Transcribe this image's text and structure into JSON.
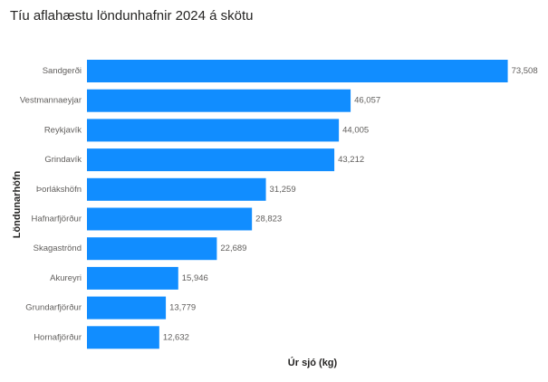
{
  "chart_data": {
    "type": "bar",
    "orientation": "horizontal",
    "title": "Tíu aflahæstu löndunhafnir 2024 á skötu",
    "xlabel": "Úr sjó (kg)",
    "ylabel": "Löndunarhöfn",
    "xlim": [
      0,
      75000
    ],
    "grid": false,
    "bar_color": "#118DFF",
    "categories": [
      "Sandgerði",
      "Vestmannaeyjar",
      "Reykjavík",
      "Grindavík",
      "Þorlákshöfn",
      "Hafnarfjörður",
      "Skagaströnd",
      "Akureyri",
      "Grundarfjörður",
      "Hornafjörður"
    ],
    "values": [
      73508,
      46057,
      44005,
      43212,
      31259,
      28823,
      22689,
      15946,
      13779,
      12632
    ],
    "data_labels": [
      "73,508",
      "46,057",
      "44,005",
      "43,212",
      "31,259",
      "28,823",
      "22,689",
      "15,946",
      "13,779",
      "12,632"
    ]
  }
}
